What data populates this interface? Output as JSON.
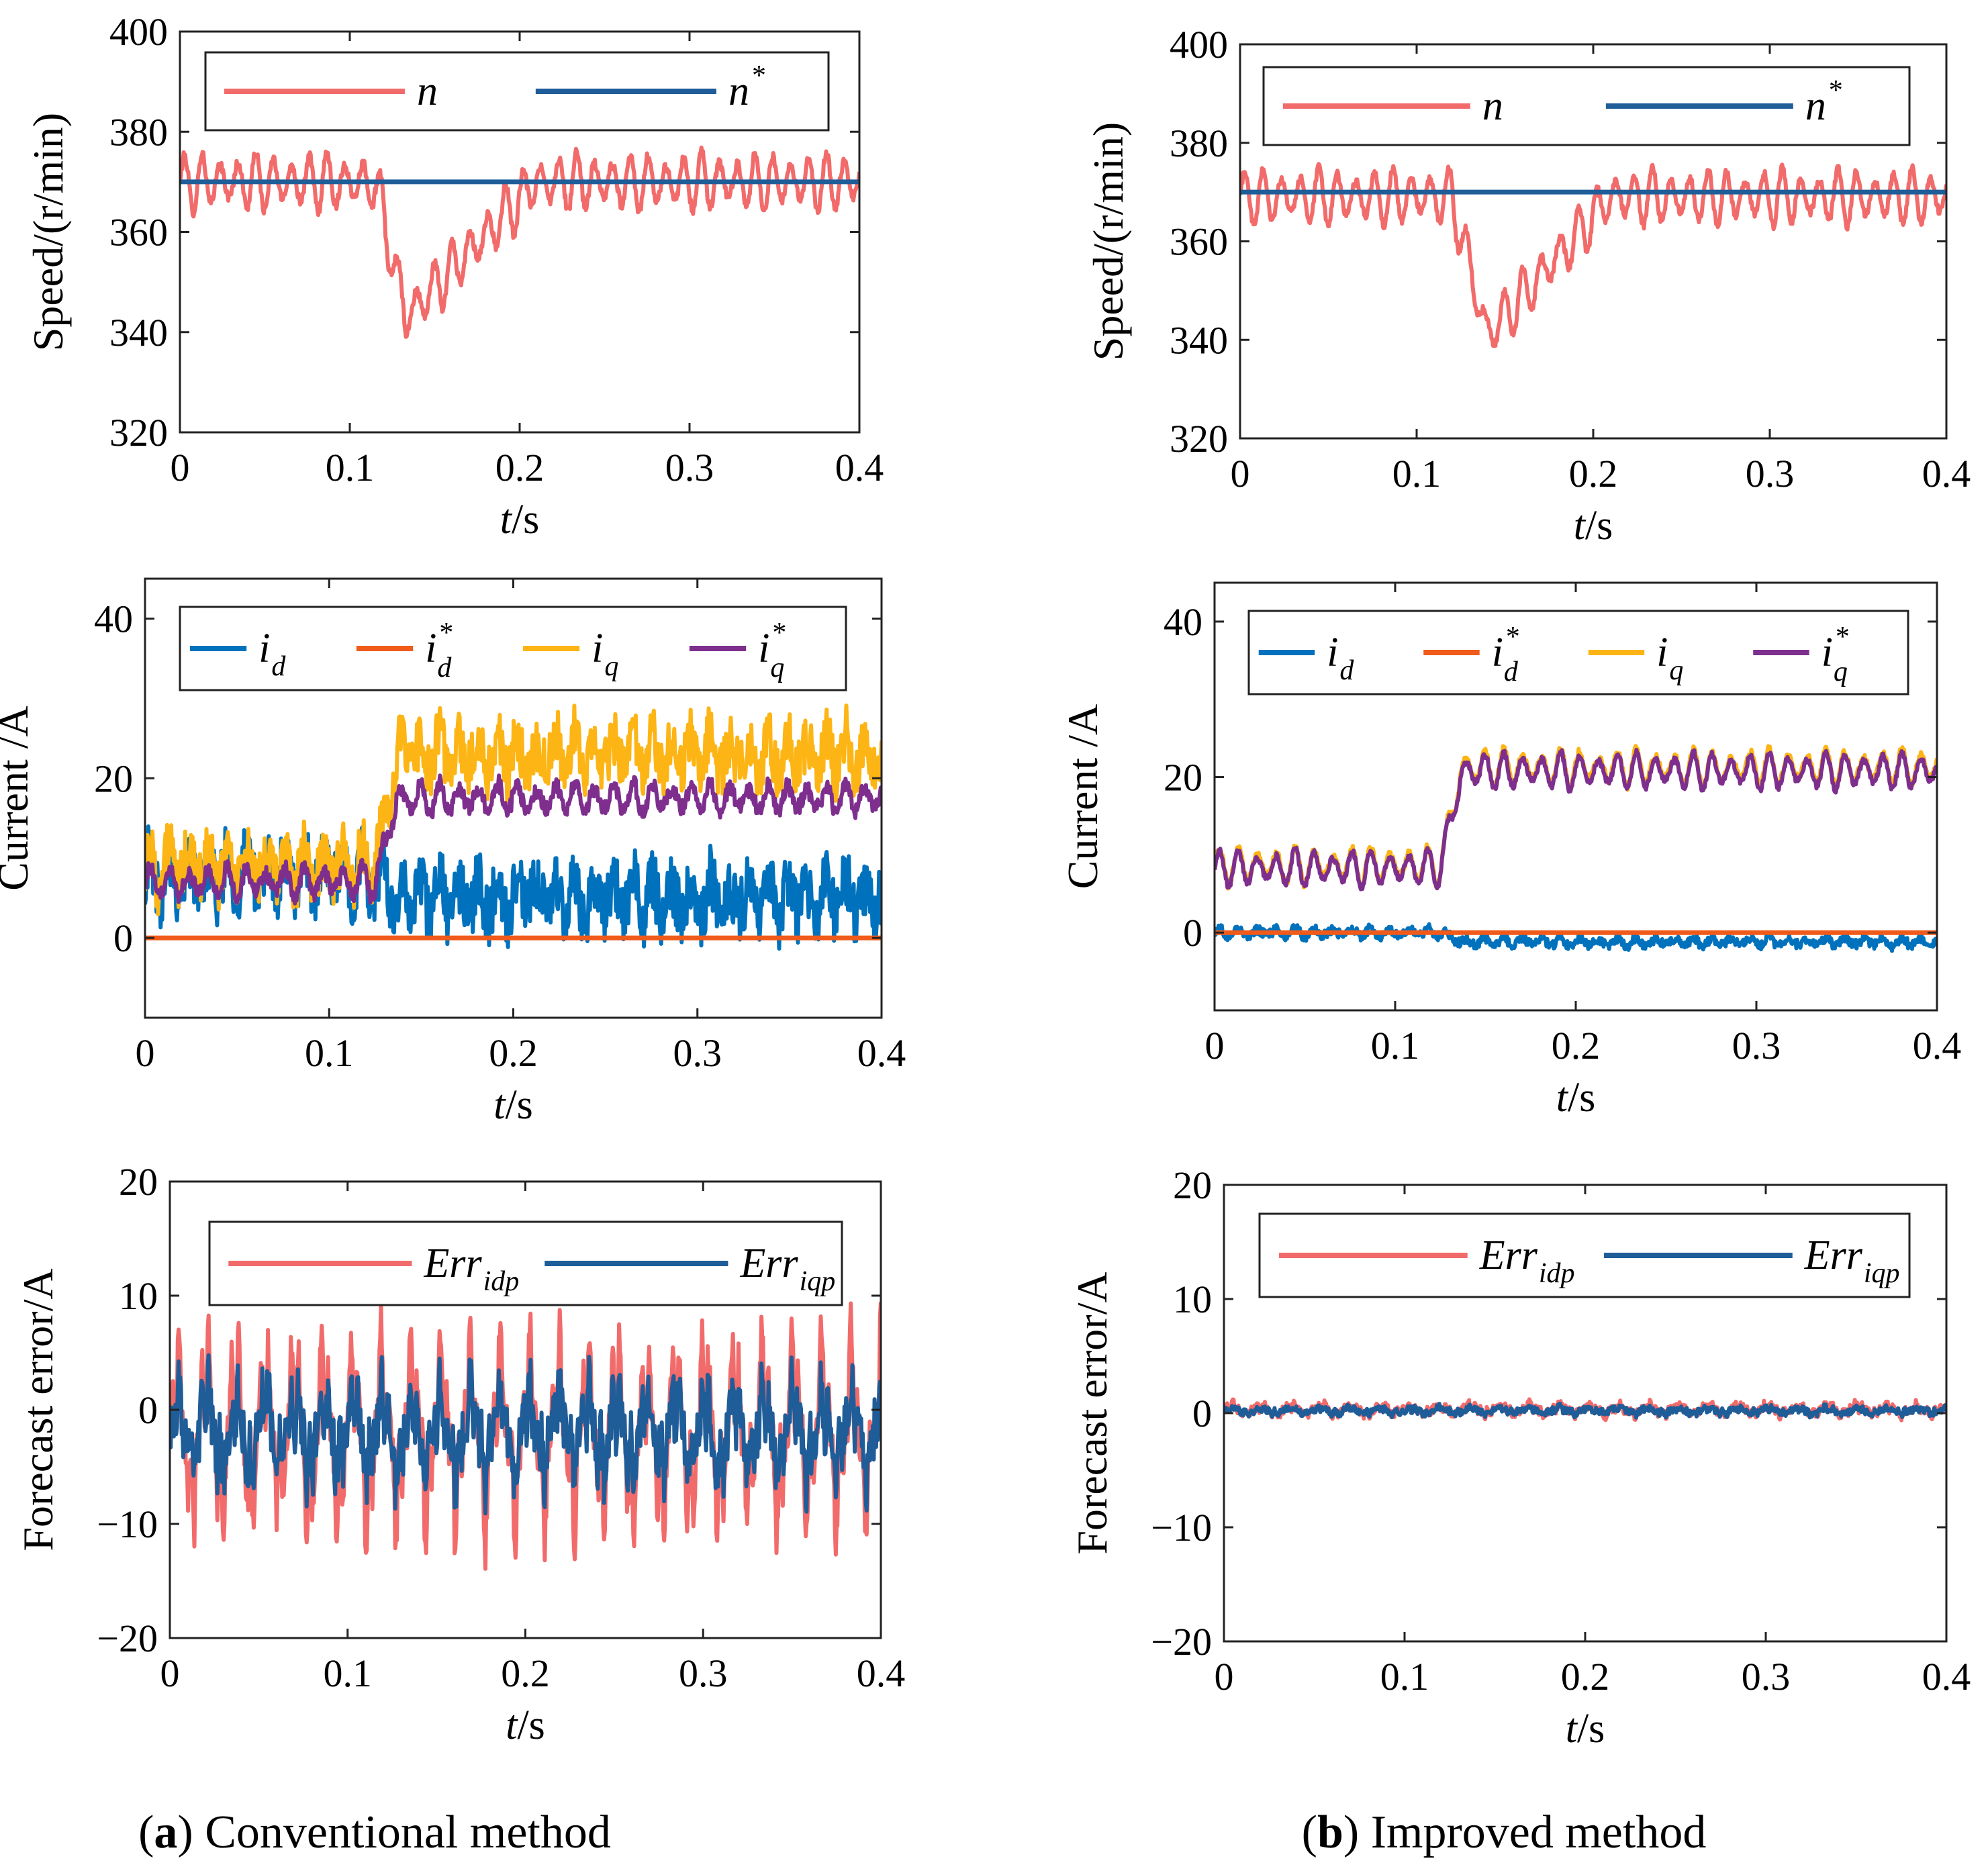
{
  "figure": {
    "captions": [
      {
        "letter": "a",
        "text": ") Conventional method",
        "open": "("
      },
      {
        "letter": "b",
        "text": ") Improved method",
        "open": "("
      }
    ]
  },
  "chart_data": [
    {
      "id": "speed-conventional",
      "column": "a",
      "row": 0,
      "type": "line",
      "title": "",
      "xlabel_italic": "t",
      "xlabel_rest": "/s",
      "ylabel": "Speed/(r/min)",
      "xlim": [
        0,
        0.4
      ],
      "ylim": [
        320,
        400
      ],
      "xticks": [
        0,
        0.1,
        0.2,
        0.3,
        0.4
      ],
      "xtick_labels": [
        "0",
        "0.1",
        "0.2",
        "0.3",
        "0.4"
      ],
      "yticks": [
        320,
        340,
        360,
        380,
        400
      ],
      "ytick_labels": [
        "320",
        "340",
        "360",
        "380",
        "400"
      ],
      "legend_position": "top",
      "series": [
        {
          "name": "n",
          "sup": "",
          "sub": "",
          "color": "#f26b6b",
          "profile": "speed",
          "base": 370,
          "dip": 27,
          "dip_start": 0.115,
          "dip_min_t": 0.133,
          "recover_t": 0.21,
          "ripple": 6,
          "noise": 1.0
        },
        {
          "name": "n",
          "sup": "*",
          "sub": "",
          "color": "#1f5d99",
          "profile": "constant",
          "base": 370
        }
      ]
    },
    {
      "id": "current-conventional",
      "column": "a",
      "row": 1,
      "type": "line",
      "title": "",
      "xlabel_italic": "t",
      "xlabel_rest": "/s",
      "ylabel": "Current /A",
      "xlim": [
        0,
        0.4
      ],
      "ylim": [
        -10,
        45
      ],
      "xticks": [
        0,
        0.1,
        0.2,
        0.3,
        0.4
      ],
      "xtick_labels": [
        "0",
        "0.1",
        "0.2",
        "0.3",
        "0.4"
      ],
      "yticks": [
        0,
        20,
        40
      ],
      "ytick_labels": [
        "0",
        "20",
        "40"
      ],
      "legend_position": "top",
      "series": [
        {
          "name": "i",
          "sup": "",
          "sub": "d",
          "color": "#0072bd",
          "profile": "step",
          "before": 8,
          "after": 5,
          "step_t": 0.125,
          "ripple": 3,
          "noise": 4.0
        },
        {
          "name": "i",
          "sup": "*",
          "sub": "d",
          "color": "#f05a1a",
          "profile": "constant",
          "base": 0
        },
        {
          "name": "i",
          "sup": "",
          "sub": "q",
          "color": "#fdb515",
          "profile": "step",
          "before": 9,
          "after": 23,
          "step_t": 0.125,
          "ripple": 3,
          "noise": 3.5
        },
        {
          "name": "i",
          "sup": "*",
          "sub": "q",
          "color": "#7e2f8e",
          "profile": "step",
          "before": 7,
          "after": 17.5,
          "step_t": 0.125,
          "ripple": 2,
          "noise": 1.0
        }
      ]
    },
    {
      "id": "error-conventional",
      "column": "a",
      "row": 2,
      "type": "line",
      "title": "",
      "xlabel_italic": "t",
      "xlabel_rest": "/s",
      "ylabel": "Forecast error/A",
      "xlim": [
        0,
        0.4
      ],
      "ylim": [
        -20,
        20
      ],
      "xticks": [
        0,
        0.1,
        0.2,
        0.3,
        0.4
      ],
      "xtick_labels": [
        "0",
        "0.1",
        "0.2",
        "0.3",
        "0.4"
      ],
      "yticks": [
        -20,
        -10,
        0,
        10,
        20
      ],
      "ytick_labels": [
        "−20",
        "−10",
        "0",
        "10",
        "20"
      ],
      "legend_position": "top",
      "series": [
        {
          "name": "Err",
          "sup": "",
          "sub": "idp",
          "color": "#f26b6b",
          "profile": "band",
          "center": -2,
          "amp": 10,
          "ripple": 9,
          "noise": 2.0
        },
        {
          "name": "Err",
          "sup": "",
          "sub": "iqp",
          "color": "#1f5d99",
          "profile": "band",
          "center": -2,
          "amp": 5,
          "ripple": 4,
          "noise": 2.5
        }
      ]
    },
    {
      "id": "speed-improved",
      "column": "b",
      "row": 0,
      "type": "line",
      "title": "",
      "xlabel_italic": "t",
      "xlabel_rest": "/s",
      "ylabel": "Speed/(r/min)",
      "xlim": [
        0,
        0.4
      ],
      "ylim": [
        320,
        400
      ],
      "xticks": [
        0,
        0.1,
        0.2,
        0.3,
        0.4
      ],
      "xtick_labels": [
        "0",
        "0.1",
        "0.2",
        "0.3",
        "0.4"
      ],
      "yticks": [
        320,
        340,
        360,
        380,
        400
      ],
      "ytick_labels": [
        "320",
        "340",
        "360",
        "380",
        "400"
      ],
      "legend_position": "top",
      "series": [
        {
          "name": "n",
          "sup": "",
          "sub": "",
          "color": "#f26b6b",
          "profile": "speed",
          "base": 369,
          "dip": 28,
          "dip_start": 0.12,
          "dip_min_t": 0.14,
          "recover_t": 0.21,
          "ripple": 6,
          "noise": 0.8
        },
        {
          "name": "n",
          "sup": "*",
          "sub": "",
          "color": "#1f5d99",
          "profile": "constant",
          "base": 370
        }
      ]
    },
    {
      "id": "current-improved",
      "column": "b",
      "row": 1,
      "type": "line",
      "title": "",
      "xlabel_italic": "t",
      "xlabel_rest": "/s",
      "ylabel": "Current /A",
      "xlim": [
        0,
        0.4
      ],
      "ylim": [
        -10,
        45
      ],
      "xticks": [
        0,
        0.1,
        0.2,
        0.3,
        0.4
      ],
      "xtick_labels": [
        "0",
        "0.1",
        "0.2",
        "0.3",
        "0.4"
      ],
      "yticks": [
        0,
        20,
        40
      ],
      "ytick_labels": [
        "0",
        "20",
        "40"
      ],
      "legend_position": "top",
      "series": [
        {
          "name": "i",
          "sup": "",
          "sub": "d",
          "color": "#0072bd",
          "profile": "step",
          "before": 0,
          "after": -1.2,
          "step_t": 0.125,
          "ripple": 0.6,
          "noise": 0.6
        },
        {
          "name": "i",
          "sup": "*",
          "sub": "d",
          "color": "#f05a1a",
          "profile": "constant",
          "base": 0
        },
        {
          "name": "i",
          "sup": "",
          "sub": "q",
          "color": "#fdb515",
          "profile": "step",
          "before": 8.6,
          "after": 21.2,
          "step_t": 0.125,
          "ripple": 2.5,
          "noise": 0.5
        },
        {
          "name": "i",
          "sup": "*",
          "sub": "q",
          "color": "#7e2f8e",
          "profile": "step",
          "before": 8.3,
          "after": 20.8,
          "step_t": 0.125,
          "ripple": 2.5,
          "noise": 0.4
        }
      ]
    },
    {
      "id": "error-improved",
      "column": "b",
      "row": 2,
      "type": "line",
      "title": "",
      "xlabel_italic": "t",
      "xlabel_rest": "/s",
      "ylabel": "Forecast error/A",
      "xlim": [
        0,
        0.4
      ],
      "ylim": [
        -20,
        20
      ],
      "xticks": [
        0,
        0.1,
        0.2,
        0.3,
        0.4
      ],
      "xtick_labels": [
        "0",
        "0.1",
        "0.2",
        "0.3",
        "0.4"
      ],
      "yticks": [
        -20,
        -10,
        0,
        10,
        20
      ],
      "ytick_labels": [
        "−20",
        "−10",
        "0",
        "10",
        "20"
      ],
      "legend_position": "top",
      "series": [
        {
          "name": "Err",
          "sup": "",
          "sub": "idp",
          "color": "#f26b6b",
          "profile": "band",
          "center": 0.3,
          "amp": 0.6,
          "ripple": 0.4,
          "noise": 0.4
        },
        {
          "name": "Err",
          "sup": "",
          "sub": "iqp",
          "color": "#1f5d99",
          "profile": "band",
          "center": 0.2,
          "amp": 0.4,
          "ripple": 0.3,
          "noise": 0.3
        }
      ]
    }
  ]
}
